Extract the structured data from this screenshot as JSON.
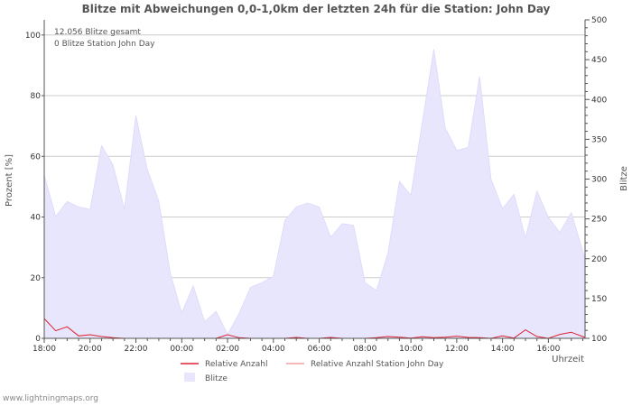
{
  "credit": "www.lightningmaps.org",
  "chart_data": {
    "type": "area",
    "title": "Blitze mit Abweichungen 0,0-1,0km der letzten 24h für die Station: John Day",
    "xlabel": "Uhrzeit",
    "ylabel_left": "Prozent   [%]",
    "ylabel_right": "Blitze",
    "annotations": [
      "12.056 Blitze gesamt",
      "0 Blitze Station John Day"
    ],
    "x_ticks": [
      {
        "h": 0,
        "label": "18:00"
      },
      {
        "h": 2,
        "label": "20:00"
      },
      {
        "h": 4,
        "label": "22:00"
      },
      {
        "h": 6,
        "label": "00:00"
      },
      {
        "h": 8,
        "label": "02:00"
      },
      {
        "h": 10,
        "label": "04:00"
      },
      {
        "h": 12,
        "label": "06:00"
      },
      {
        "h": 14,
        "label": "08:00"
      },
      {
        "h": 16,
        "label": "10:00"
      },
      {
        "h": 18,
        "label": "12:00"
      },
      {
        "h": 20,
        "label": "14:00"
      },
      {
        "h": 22,
        "label": "16:00"
      }
    ],
    "x_range_hours": [
      0,
      23.6
    ],
    "left_axis": {
      "range": [
        0,
        105
      ],
      "ticks": [
        0,
        20,
        40,
        60,
        80,
        100
      ]
    },
    "right_axis": {
      "range": [
        100,
        500
      ],
      "ticks": [
        100,
        150,
        200,
        250,
        300,
        350,
        400,
        450,
        500
      ]
    },
    "legend": [
      {
        "label": "Relative Anzahl",
        "color": "#dd2233",
        "kind": "line"
      },
      {
        "label": "Relative Anzahl Station John Day",
        "color": "#f4a0a0",
        "kind": "line"
      },
      {
        "label": "Blitze",
        "color": "#e8e6fc",
        "kind": "area"
      }
    ],
    "colors": {
      "area_fill": "#e8e6fc",
      "area_edge": "#dcd8fa",
      "grid": "#cccccc",
      "relative": "#dd2233"
    },
    "series": [
      {
        "name": "Blitze",
        "axis": "right",
        "x_hours": [
          0,
          0.5,
          1,
          1.5,
          2,
          2.5,
          3,
          3.5,
          4,
          4.5,
          5,
          5.5,
          6,
          6.5,
          7,
          7.5,
          8,
          8.5,
          9,
          9.5,
          10,
          10.5,
          11,
          11.5,
          12,
          12.5,
          13,
          13.5,
          14,
          14.5,
          15,
          15.5,
          16,
          16.5,
          17,
          17.5,
          18,
          18.5,
          19,
          19.5,
          20,
          20.5,
          21,
          21.5,
          22,
          22.5,
          23,
          23.6
        ],
        "values": [
          305,
          253,
          272,
          265,
          262,
          342,
          318,
          262,
          380,
          312,
          272,
          182,
          132,
          166,
          121,
          134,
          105,
          131,
          164,
          170,
          178,
          248,
          265,
          270,
          265,
          227,
          244,
          242,
          170,
          160,
          207,
          297,
          280,
          372,
          463,
          364,
          336,
          340,
          429,
          300,
          263,
          281,
          226,
          285,
          252,
          233,
          258,
          200
        ]
      },
      {
        "name": "Relative Anzahl",
        "axis": "left",
        "x_hours": [
          0,
          0.5,
          1,
          1.5,
          2,
          2.5,
          3,
          3.5,
          4,
          4.5,
          5,
          5.5,
          6,
          6.5,
          7,
          7.5,
          8,
          8.5,
          9,
          9.5,
          10,
          10.5,
          11,
          11.5,
          12,
          12.5,
          13,
          13.5,
          14,
          14.5,
          15,
          15.5,
          16,
          16.5,
          17,
          17.5,
          18,
          18.5,
          19,
          19.5,
          20,
          20.5,
          21,
          21.5,
          22,
          22.5,
          23,
          23.6
        ],
        "values": [
          6.5,
          2.5,
          3.8,
          0.8,
          1.2,
          0.6,
          0.2,
          0,
          0,
          0,
          0,
          0,
          0,
          0,
          0,
          0,
          1.2,
          0.2,
          0,
          0,
          0,
          0,
          0.3,
          0,
          0,
          0.3,
          0,
          0,
          0,
          0.2,
          0.6,
          0.4,
          0.1,
          0.5,
          0.2,
          0.4,
          0.7,
          0.3,
          0.2,
          0,
          0.8,
          0.1,
          2.8,
          0.6,
          0,
          1.3,
          2.0,
          0.3
        ]
      },
      {
        "name": "Relative Anzahl Station John Day",
        "axis": "left",
        "x_hours": [
          0,
          23.6
        ],
        "values": [
          0,
          0
        ]
      }
    ]
  }
}
